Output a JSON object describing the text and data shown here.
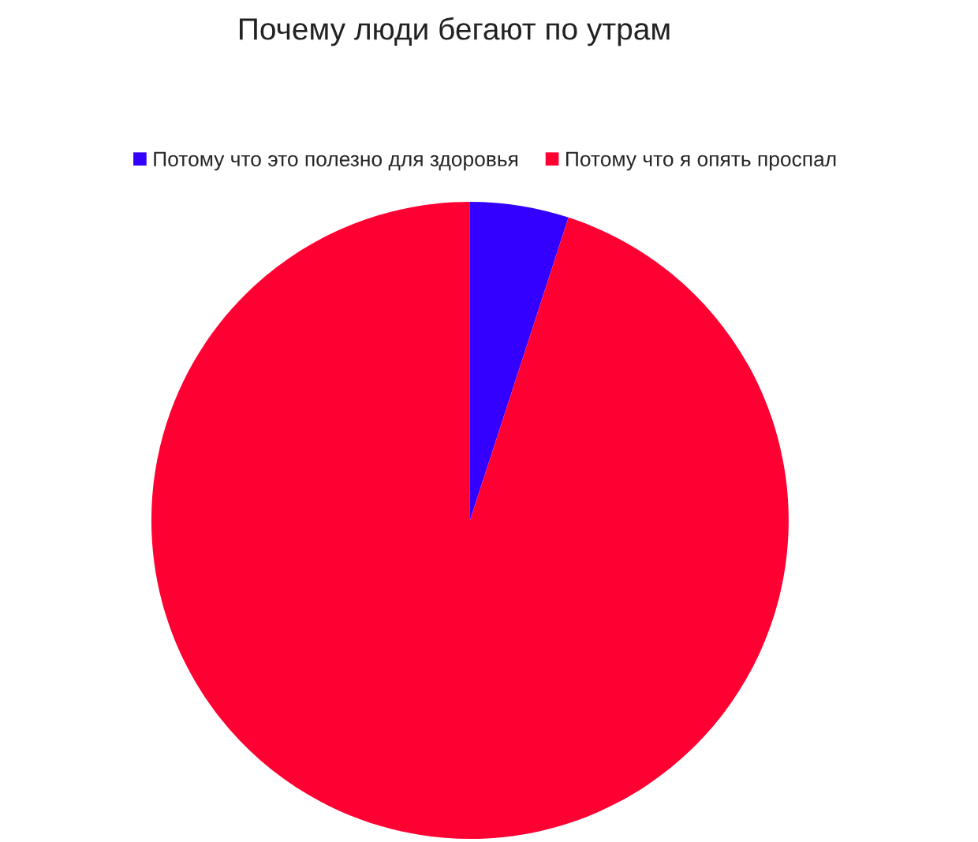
{
  "chart_data": {
    "type": "pie",
    "title": "Почему люди бегают по утрам",
    "categories": [
      "Потому что это полезно для здоровья",
      "Потому что я опять проспал"
    ],
    "values": [
      5,
      95
    ],
    "colors": [
      "#3300ff",
      "#ff0033"
    ],
    "legend": "top"
  }
}
